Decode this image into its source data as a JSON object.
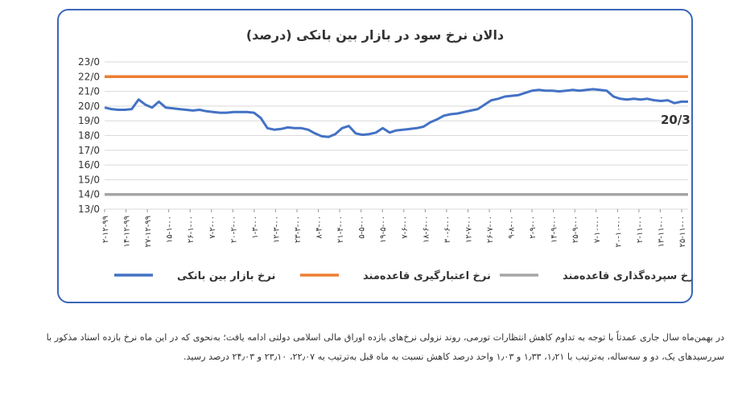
{
  "chart_data": {
    "type": "line",
    "title": "دالان نرخ سود در بازار بین بانکی (درصد)",
    "yticks": [
      "23/0",
      "22/0",
      "21/0",
      "20/0",
      "19/0",
      "18/0",
      "17/0",
      "16/0",
      "15/0",
      "14/0",
      "13/0"
    ],
    "ylim": [
      13,
      23
    ],
    "xticks": [
      "۲-۱۲-۹۹",
      "۱۴-۱۲-۹۹",
      "۲۷-۱۲-۹۹",
      "۱۵-۱-۰۰",
      "۲۶-۱-۰۰",
      "۷-۲-۰۰",
      "۲۰-۲-۰۰",
      "۱-۳-۰۰",
      "۱۲-۳-۰۰",
      "۲۳-۳-۰۰",
      "۸-۴-۰۰",
      "۲۱-۴-۰۰",
      "۵-۵-۰۰",
      "۱۹-۵-۰۰",
      "۷-۶-۰۰",
      "۱۸-۶-۰۰",
      "۳۰-۶-۰۰",
      "۱۲-۷-۰۰",
      "۲۶-۷-۰۰",
      "۹-۸-۰۰",
      "۲-۹-۰۰",
      "۱۴-۹-۰۰",
      "۲۵-۹-۰۰",
      "۷-۱۰-۰۰",
      "۲۰-۱۰-۰۰",
      "۲-۱۱-۰۰",
      "۱۳-۱۱-۰۰",
      "۲۵-۱۱-۰۰"
    ],
    "series": [
      {
        "name": "نرخ بازار بین بانکی",
        "color": "#4472c4",
        "values": [
          19.9,
          19.8,
          19.75,
          19.75,
          19.8,
          20.45,
          20.1,
          19.9,
          20.3,
          19.9,
          19.85,
          19.8,
          19.75,
          19.7,
          19.75,
          19.65,
          19.6,
          19.55,
          19.55,
          19.6,
          19.6,
          19.6,
          19.55,
          19.2,
          18.5,
          18.4,
          18.45,
          18.55,
          18.5,
          18.5,
          18.4,
          18.15,
          17.95,
          17.9,
          18.1,
          18.5,
          18.65,
          18.15,
          18.05,
          18.1,
          18.2,
          18.5,
          18.2,
          18.35,
          18.4,
          18.45,
          18.5,
          18.6,
          18.9,
          19.1,
          19.35,
          19.45,
          19.5,
          19.6,
          19.7,
          19.8,
          20.1,
          20.4,
          20.5,
          20.65,
          20.7,
          20.75,
          20.9,
          21.05,
          21.1,
          21.05,
          21.05,
          21.0,
          21.05,
          21.1,
          21.05,
          21.1,
          21.15,
          21.1,
          21.05,
          20.65,
          20.5,
          20.45,
          20.5,
          20.45,
          20.5,
          20.4,
          20.35,
          20.4,
          20.2,
          20.3,
          20.3
        ]
      },
      {
        "name": "نرخ اعتبارگیری قاعده‌مند",
        "color": "#ed7d31",
        "values": [
          22.0,
          22.0
        ]
      },
      {
        "name": "نرخ سپرده‌گذاری قاعده‌مند",
        "color": "#a5a5a5",
        "values": [
          14.0,
          14.0
        ]
      }
    ],
    "end_label": "20/3",
    "legend_position": "bottom",
    "grid": true
  },
  "caption": "در بهمن‌ماه سال جاری عمدتاً با توجه به تداوم کاهش انتظارات تورمی، روند نزولی نرخ‌های بازده اوراق مالی اسلامی دولتی ادامه یافت؛ به‌نحوی که در این ماه نرخ بازده اسناد مذکور با سررسیدهای یک، دو و سه‌ساله، به‌ترتیب با ۱٫۲۱، ۱٫۳۳ و ۱٫۰۳ واحد درصد کاهش نسبت به ماه قبل به‌ترتیب به ۲۲٫۰۷، ۲۳٫۱۰ و ۲۴٫۰۳ درصد رسید."
}
